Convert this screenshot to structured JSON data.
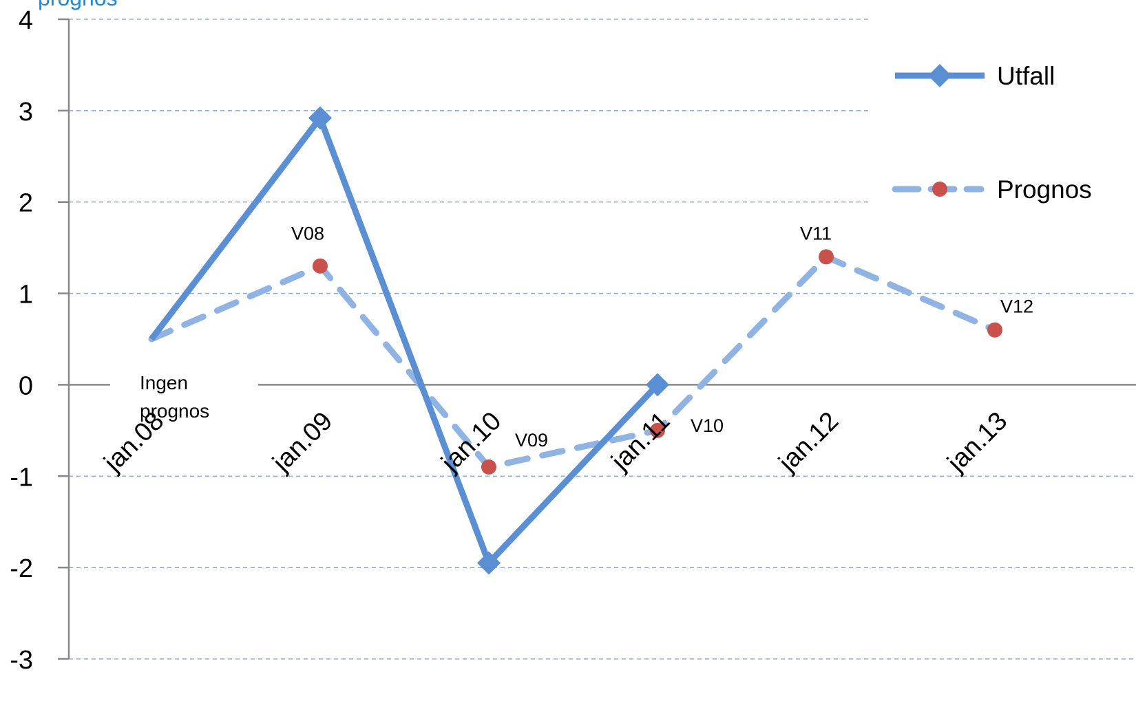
{
  "chart_data": {
    "type": "line",
    "title": "prognos",
    "categories": [
      "jan.08",
      "jan.09",
      "jan.10",
      "jan.11",
      "jan.12",
      "jan.13"
    ],
    "ylim": [
      -3,
      4
    ],
    "yticks": [
      "4",
      "3",
      "2",
      "1",
      "0",
      "-1",
      "-2",
      "-3"
    ],
    "grid": true,
    "legend_position": "right",
    "series": [
      {
        "name": "Utfall",
        "values": [
          0.5,
          2.92,
          -1.95,
          0.0,
          null,
          null
        ],
        "color": "#5a8fd4",
        "style": "solid",
        "marker": "diamond"
      },
      {
        "name": "Prognos",
        "values": [
          0.5,
          1.3,
          -0.9,
          -0.5,
          1.4,
          0.6
        ],
        "point_labels": [
          "",
          "V08",
          "V09",
          "V10",
          "V11",
          "V12"
        ],
        "color": "#8fb3e3",
        "marker_color": "#c9504b",
        "style": "dashed",
        "marker": "circle"
      }
    ],
    "annotations": [
      {
        "text_lines": [
          "Ingen",
          "prognos"
        ],
        "category": "jan.08"
      }
    ]
  }
}
